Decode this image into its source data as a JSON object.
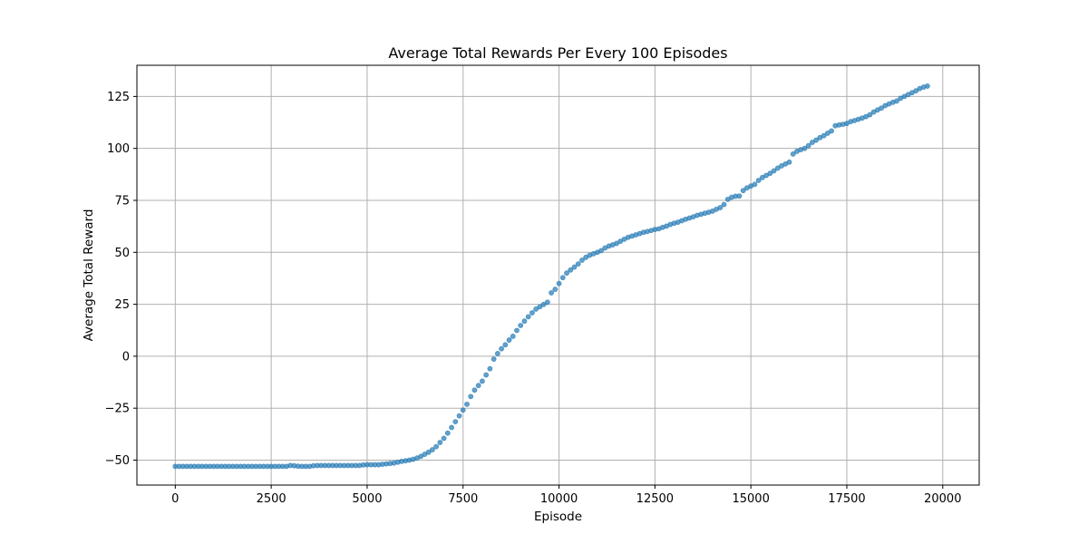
{
  "chart_data": {
    "type": "scatter",
    "title": "Average Total Rewards Per Every 100 Episodes",
    "xlabel": "Episode",
    "ylabel": "Average Total Reward",
    "xlim": [
      -1000,
      20950
    ],
    "ylim": [
      -62,
      140
    ],
    "xticks": [
      0,
      2500,
      5000,
      7500,
      10000,
      12500,
      15000,
      17500,
      20000
    ],
    "yticks": [
      -50,
      -25,
      0,
      25,
      50,
      75,
      100,
      125
    ],
    "xtick_labels": [
      "0",
      "2500",
      "5000",
      "7500",
      "10000",
      "12500",
      "15000",
      "17500",
      "20000"
    ],
    "ytick_labels": [
      "−50",
      "−25",
      "0",
      "25",
      "50",
      "75",
      "100",
      "125"
    ],
    "grid": true,
    "marker_color": "#1f77b4",
    "x_start": 0,
    "x_step": 100,
    "series": [
      {
        "values": [
          -53.0,
          -53.0,
          -53.0,
          -53.0,
          -53.0,
          -53.0,
          -53.0,
          -53.0,
          -53.0,
          -53.0,
          -53.0,
          -53.0,
          -53.0,
          -53.0,
          -53.0,
          -53.0,
          -53.0,
          -53.0,
          -53.0,
          -53.0,
          -53.0,
          -53.0,
          -53.0,
          -53.0,
          -53.0,
          -53.0,
          -53.0,
          -53.0,
          -53.0,
          -53.0,
          -52.6,
          -52.7,
          -52.9,
          -53.0,
          -53.0,
          -53.0,
          -52.7,
          -52.6,
          -52.6,
          -52.6,
          -52.6,
          -52.6,
          -52.6,
          -52.6,
          -52.6,
          -52.6,
          -52.6,
          -52.6,
          -52.6,
          -52.3,
          -52.2,
          -52.2,
          -52.2,
          -52.2,
          -52.0,
          -51.8,
          -51.6,
          -51.4,
          -51.0,
          -50.6,
          -50.3,
          -50.0,
          -49.6,
          -49.0,
          -48.2,
          -47.2,
          -46.2,
          -45.0,
          -43.5,
          -41.5,
          -39.5,
          -37.0,
          -34.3,
          -31.5,
          -28.7,
          -25.9,
          -23.1,
          -19.4,
          -16.3,
          -14.1,
          -12.0,
          -9.0,
          -6.0,
          -1.4,
          1.3,
          3.6,
          5.5,
          7.8,
          9.6,
          12.4,
          14.8,
          16.9,
          19.0,
          20.9,
          22.7,
          23.8,
          24.9,
          26.0,
          30.5,
          32.2,
          35.0,
          37.8,
          40.0,
          41.5,
          42.9,
          44.4,
          46.2,
          47.6,
          48.6,
          49.3,
          50.0,
          50.8,
          52.1,
          53.0,
          53.6,
          54.3,
          55.3,
          56.3,
          57.2,
          57.8,
          58.4,
          59.0,
          59.6,
          60.0,
          60.5,
          61.0,
          61.3,
          62.0,
          62.6,
          63.4,
          64.0,
          64.5,
          65.2,
          65.9,
          66.5,
          67.1,
          67.8,
          68.3,
          68.8,
          69.3,
          69.8,
          70.7,
          71.5,
          73.0,
          75.5,
          76.5,
          77.0,
          77.1,
          79.7,
          81.0,
          81.9,
          82.7,
          84.6,
          86.0,
          87.0,
          88.0,
          89.2,
          90.5,
          91.6,
          92.5,
          93.4,
          97.3,
          98.6,
          99.4,
          100.0,
          101.3,
          102.9,
          104.0,
          105.2,
          106.1,
          107.3,
          108.4,
          110.9,
          111.3,
          111.6,
          112.0,
          112.9,
          113.4,
          114.0,
          114.6,
          115.3,
          116.2,
          117.5,
          118.5,
          119.4,
          120.6,
          121.4,
          122.2,
          122.8,
          124.1,
          125.0,
          125.9,
          126.8,
          127.7,
          128.8,
          129.5,
          130.0
        ]
      }
    ]
  }
}
